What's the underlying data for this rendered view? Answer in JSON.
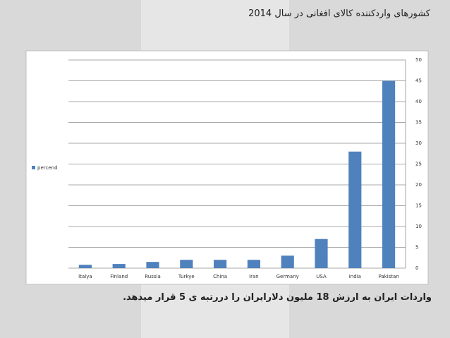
{
  "chart_data": {
    "type": "bar",
    "title": "کشورهای واردکننده کالای افغانی در سال 2014",
    "categories": [
      "Italya",
      "Finland",
      "Russia",
      "Turkye",
      "China",
      "Iran",
      "Germany",
      "USA",
      "India",
      "Pakistan"
    ],
    "series": [
      {
        "name": "percend",
        "color": "#4f81bd",
        "values": [
          0.8,
          1,
          1.5,
          2,
          2,
          2,
          3,
          7,
          28,
          45
        ]
      }
    ],
    "ylim": [
      0,
      50
    ],
    "yticks": [
      0,
      5,
      10,
      15,
      20,
      25,
      30,
      35,
      40,
      45,
      50
    ],
    "grid": true,
    "y_axis_side": "right",
    "legend_position": "left",
    "caption": "واردات ایران به ارزش 18 ملیون دلارایران را دررتبه ی 5 قرار میدهد."
  }
}
